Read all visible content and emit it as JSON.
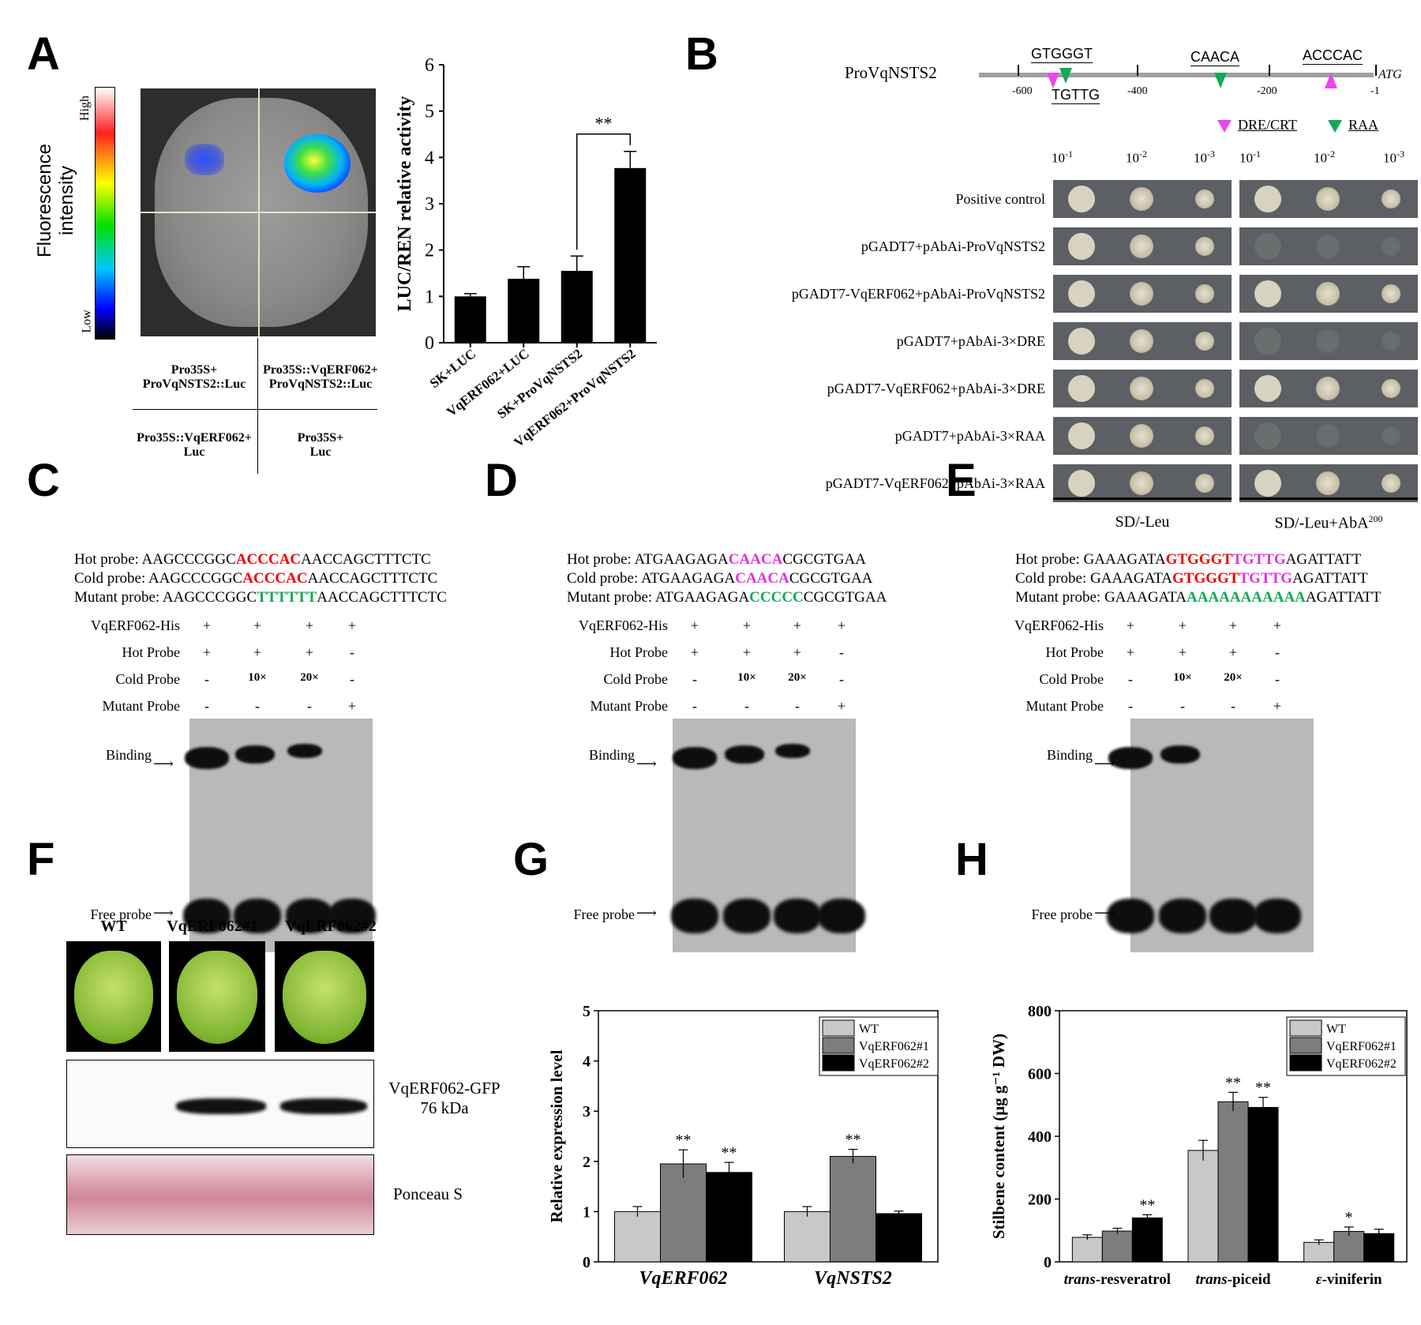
{
  "panel_labels": [
    "A",
    "B",
    "C",
    "D",
    "E",
    "F",
    "G",
    "H"
  ],
  "panelA": {
    "colorbar_title": "Fluorescence intensity",
    "colorbar_high": "High",
    "colorbar_low": "Low",
    "quadrants": [
      {
        "line1": "Pro35S+",
        "line2": "ProVqNSTS2::Luc"
      },
      {
        "line1": "Pro35S::VqERF062+",
        "line2": "ProVqNSTS2::Luc"
      },
      {
        "line1": "Pro35S::VqERF062+",
        "line2": "Luc"
      },
      {
        "line1": "Pro35S+",
        "line2": "Luc"
      }
    ]
  },
  "chart_data": [
    {
      "type": "bar",
      "ylabel": "LUC/REN relative activity",
      "ylim": [
        0,
        6
      ],
      "yticks": [
        "0",
        "1",
        "2",
        "3",
        "4",
        "5",
        "6"
      ],
      "categories": [
        "SK+LUC",
        "VqERF062+LUC",
        "SK+ProVqNSTS2",
        "VqERF062+ProVqNSTS2"
      ],
      "values": [
        1.0,
        1.38,
        1.55,
        3.77
      ],
      "errors": [
        0.06,
        0.26,
        0.32,
        0.36
      ],
      "significance": "**",
      "color": "#000000"
    },
    {
      "type": "bar",
      "ylabel": "Relative expression level",
      "ylim": [
        0,
        5
      ],
      "yticks": [
        "0",
        "1",
        "2",
        "3",
        "4",
        "5"
      ],
      "categories": [
        "VqERF062",
        "VqNSTS2"
      ],
      "series": [
        {
          "name": "WT",
          "values": [
            1.0,
            1.0
          ],
          "errors": [
            0.1,
            0.1
          ],
          "marks": [
            "",
            ""
          ],
          "color": "#c8c8c8"
        },
        {
          "name": "VqERF062#1",
          "values": [
            1.95,
            2.1
          ],
          "errors": [
            0.28,
            0.14
          ],
          "marks": [
            "**",
            "**"
          ],
          "color": "#7d7d7d"
        },
        {
          "name": "VqERF062#2",
          "values": [
            1.78,
            0.96
          ],
          "errors": [
            0.2,
            0.05
          ],
          "marks": [
            "**",
            ""
          ],
          "color": "#000000"
        }
      ]
    },
    {
      "type": "bar",
      "ylabel": "Stilbene content (μg g⁻¹ DW)",
      "ylim": [
        0,
        800
      ],
      "yticks": [
        "0",
        "200",
        "400",
        "600",
        "800"
      ],
      "categories": [
        "trans-resveratrol",
        "trans-piceid",
        "ε-viniferin"
      ],
      "category_prefix": [
        "trans",
        "trans",
        "ε"
      ],
      "category_suffix": [
        "-resveratrol",
        "-piceid",
        "-viniferin"
      ],
      "series": [
        {
          "name": "WT",
          "values": [
            78,
            355,
            62
          ],
          "errors": [
            8,
            32,
            8
          ],
          "marks": [
            "",
            "",
            ""
          ],
          "color": "#c8c8c8"
        },
        {
          "name": "VqERF062#1",
          "values": [
            98,
            510,
            97
          ],
          "errors": [
            9,
            30,
            14
          ],
          "marks": [
            "",
            "**",
            "*"
          ],
          "color": "#7d7d7d"
        },
        {
          "name": "VqERF062#2",
          "values": [
            140,
            492,
            90
          ],
          "errors": [
            10,
            32,
            14
          ],
          "marks": [
            "**",
            "**",
            ""
          ],
          "color": "#000000"
        }
      ]
    }
  ],
  "panelB": {
    "promoter_name": "ProVqNSTS2",
    "motif_above": [
      "GTGGGT",
      "CAACA",
      "ACCCAC"
    ],
    "motif_below": "TGTTG",
    "positions": [
      "-600",
      "-400",
      "-200",
      "-1"
    ],
    "atg": "ATG",
    "legend": [
      {
        "label": "DRE/CRT",
        "color": "#ee44ee"
      },
      {
        "label": "RAA",
        "color": "#11aa55"
      }
    ],
    "dilutions": [
      "10",
      "-1",
      "10",
      "-2",
      "10",
      "-3"
    ],
    "rows": [
      "Positive control",
      "pGADT7+pAbAi-ProVqNSTS2",
      "pGADT7-VqERF062+pAbAi-ProVqNSTS2",
      "pGADT7+pAbAi-3×DRE",
      "pGADT7-VqERF062+pAbAi-3×DRE",
      "pGADT7+pAbAi-3×RAA",
      "pGADT7-VqERF062+pAbAi-3×RAA"
    ],
    "media_left": "SD/-Leu",
    "media_right": "SD/-Leu+AbA",
    "media_right_sup": "200"
  },
  "emsa_common": {
    "row_labels": [
      "VqERF062-His",
      "Hot Probe",
      "Cold Probe",
      "Mutant Probe"
    ],
    "row_values": [
      [
        "+",
        "+",
        "+",
        "+"
      ],
      [
        "+",
        "+",
        "+",
        "-"
      ],
      [
        "-",
        "10×",
        "20×",
        "-"
      ],
      [
        "-",
        "-",
        "-",
        "+"
      ]
    ],
    "binding": "Binding",
    "free_probe": "Free probe"
  },
  "panelC": {
    "hot": {
      "prefix": "Hot probe: ",
      "a": "AAGCCCGGC",
      "b": "ACCCAC",
      "c": "AACCAGCTTTCTC"
    },
    "cold": {
      "prefix": "Cold probe: ",
      "a": "AAGCCCGGC",
      "b": "ACCCAC",
      "c": "AACCAGCTTTCTC"
    },
    "mutant": {
      "prefix": "Mutant probe: ",
      "a": "AAGCCCGGC",
      "b": "TTTTTT",
      "c": "AACCAGCTTTCTC"
    }
  },
  "panelD": {
    "hot": {
      "prefix": "Hot probe: ",
      "a": "ATGAAGAGA",
      "b": "CAACA",
      "c": "CGCGTGAA"
    },
    "cold": {
      "prefix": "Cold probe: ",
      "a": "ATGAAGAGA",
      "b": "CAACA",
      "c": "CGCGTGAA"
    },
    "mutant": {
      "prefix": "Mutant probe: ",
      "a": "ATGAAGAGA",
      "b": "CCCCC",
      "c": "CGCGTGAA"
    }
  },
  "panelE": {
    "hot": {
      "prefix": "Hot probe: ",
      "a": "GAAAGATA",
      "b1": "GTGGGT",
      "b2": "TGTTG",
      "c": "AGATTATT"
    },
    "cold": {
      "prefix": "Cold probe: ",
      "a": "GAAAGATA",
      "b1": "GTGGGT",
      "b2": "TGTTG",
      "c": "AGATTATT"
    },
    "mutant": {
      "prefix": "Mutant probe: ",
      "a": "GAAAGATA",
      "b": "AAAAAAAAAAA",
      "c": "AGATTATT"
    }
  },
  "panelF": {
    "lines": [
      "WT",
      "VqERF062#1",
      "VqERF062#2"
    ],
    "blot_label1": "VqERF062-GFP",
    "blot_label2": "76 kDa",
    "ponceau": "Ponceau S"
  }
}
